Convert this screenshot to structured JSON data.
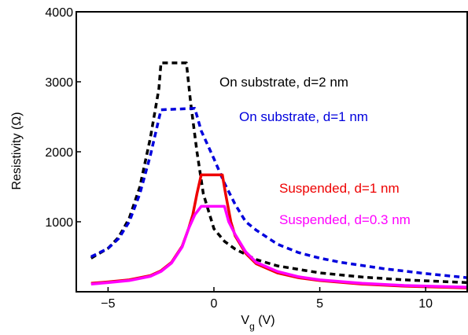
{
  "chart_data": {
    "type": "line",
    "xlabel": "V",
    "xlabel_sub": "g",
    "xlabel_unit": " (V)",
    "ylabel": "Resistivity (Ω)",
    "xlim": [
      -6.5,
      12
    ],
    "ylim": [
      0,
      4000
    ],
    "xticks": [
      -5,
      0,
      5,
      10
    ],
    "yticks": [
      1000,
      2000,
      3000,
      4000
    ],
    "series": [
      {
        "name": "On substrate, d=2 nm",
        "color": "#000000",
        "style": "dashed",
        "points": [
          [
            -5.8,
            480
          ],
          [
            -5,
            620
          ],
          [
            -4.5,
            780
          ],
          [
            -4,
            1050
          ],
          [
            -3.5,
            1500
          ],
          [
            -3,
            2200
          ],
          [
            -2.6,
            2900
          ],
          [
            -2.5,
            3270
          ],
          [
            -1.3,
            3270
          ],
          [
            -1.1,
            2700
          ],
          [
            -0.8,
            2000
          ],
          [
            -0.5,
            1400
          ],
          [
            0,
            900
          ],
          [
            0.5,
            720
          ],
          [
            1,
            610
          ],
          [
            2,
            460
          ],
          [
            3,
            370
          ],
          [
            5,
            270
          ],
          [
            7,
            210
          ],
          [
            9,
            170
          ],
          [
            12,
            130
          ]
        ]
      },
      {
        "name": "On substrate, d=1 nm",
        "color": "#0000dd",
        "style": "dashed",
        "points": [
          [
            -5.8,
            500
          ],
          [
            -5,
            620
          ],
          [
            -4.5,
            760
          ],
          [
            -4,
            1000
          ],
          [
            -3.5,
            1400
          ],
          [
            -3,
            1950
          ],
          [
            -2.5,
            2600
          ],
          [
            -0.9,
            2620
          ],
          [
            -0.6,
            2300
          ],
          [
            0,
            1900
          ],
          [
            0.5,
            1550
          ],
          [
            1,
            1250
          ],
          [
            1.5,
            1000
          ],
          [
            2,
            880
          ],
          [
            3,
            680
          ],
          [
            4,
            560
          ],
          [
            5,
            480
          ],
          [
            6,
            420
          ],
          [
            8,
            330
          ],
          [
            10,
            260
          ],
          [
            12,
            200
          ]
        ]
      },
      {
        "name": "Suspended, d=1 nm",
        "color": "#ee0000",
        "style": "solid",
        "points": [
          [
            -5.8,
            120
          ],
          [
            -5,
            140
          ],
          [
            -4,
            170
          ],
          [
            -3,
            230
          ],
          [
            -2.5,
            300
          ],
          [
            -2,
            420
          ],
          [
            -1.5,
            650
          ],
          [
            -1.2,
            900
          ],
          [
            -1,
            1100
          ],
          [
            -0.8,
            1400
          ],
          [
            -0.6,
            1670
          ],
          [
            0.4,
            1670
          ],
          [
            0.55,
            1400
          ],
          [
            0.8,
            1000
          ],
          [
            1,
            800
          ],
          [
            1.5,
            550
          ],
          [
            2,
            400
          ],
          [
            3,
            270
          ],
          [
            4,
            200
          ],
          [
            5,
            160
          ],
          [
            7,
            110
          ],
          [
            9,
            80
          ],
          [
            12,
            55
          ]
        ]
      },
      {
        "name": "Suspended, d=0.3 nm",
        "color": "#ff00ff",
        "style": "solid",
        "points": [
          [
            -5.8,
            110
          ],
          [
            -5,
            130
          ],
          [
            -4,
            160
          ],
          [
            -3,
            220
          ],
          [
            -2.5,
            290
          ],
          [
            -2,
            410
          ],
          [
            -1.5,
            640
          ],
          [
            -1.2,
            900
          ],
          [
            -0.9,
            1100
          ],
          [
            -0.6,
            1220
          ],
          [
            0.5,
            1220
          ],
          [
            0.7,
            1000
          ],
          [
            1,
            820
          ],
          [
            1.5,
            570
          ],
          [
            2,
            420
          ],
          [
            3,
            290
          ],
          [
            4,
            215
          ],
          [
            5,
            170
          ],
          [
            7,
            120
          ],
          [
            9,
            90
          ],
          [
            12,
            65
          ]
        ]
      }
    ],
    "annotations": [
      {
        "text": "On substrate, d=2 nm",
        "color": "#000000"
      },
      {
        "text": "On substrate, d=1 nm",
        "color": "#0000dd"
      },
      {
        "text": "Suspended, d=1 nm",
        "color": "#ee0000"
      },
      {
        "text": "Suspended, d=0.3 nm",
        "color": "#ff00ff"
      }
    ]
  }
}
